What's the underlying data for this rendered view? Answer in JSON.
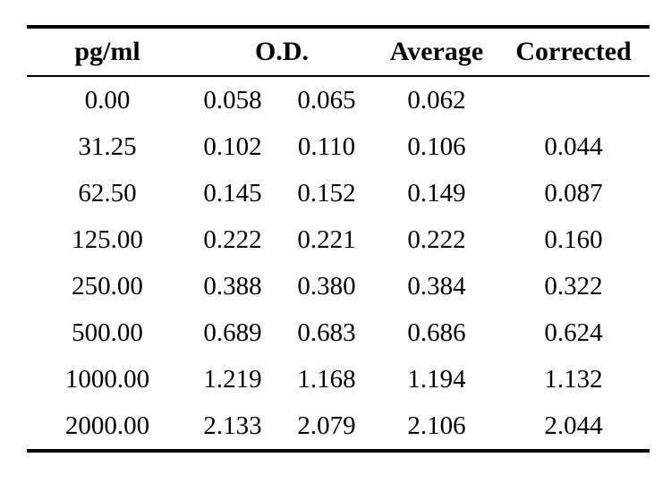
{
  "table": {
    "headers": {
      "pg_ml": "pg/ml",
      "od": "O.D.",
      "average": "Average",
      "corrected": "Corrected"
    },
    "rows": [
      {
        "pg": "0.00",
        "od1": "0.058",
        "od2": "0.065",
        "avg": "0.062",
        "corrected": ""
      },
      {
        "pg": "31.25",
        "od1": "0.102",
        "od2": "0.110",
        "avg": "0.106",
        "corrected": "0.044"
      },
      {
        "pg": "62.50",
        "od1": "0.145",
        "od2": "0.152",
        "avg": "0.149",
        "corrected": "0.087"
      },
      {
        "pg": "125.00",
        "od1": "0.222",
        "od2": "0.221",
        "avg": "0.222",
        "corrected": "0.160"
      },
      {
        "pg": "250.00",
        "od1": "0.388",
        "od2": "0.380",
        "avg": "0.384",
        "corrected": "0.322"
      },
      {
        "pg": "500.00",
        "od1": "0.689",
        "od2": "0.683",
        "avg": "0.686",
        "corrected": "0.624"
      },
      {
        "pg": "1000.00",
        "od1": "1.219",
        "od2": "1.168",
        "avg": "1.194",
        "corrected": "1.132"
      },
      {
        "pg": "2000.00",
        "od1": "2.133",
        "od2": "2.079",
        "avg": "2.106",
        "corrected": "2.044"
      }
    ]
  }
}
